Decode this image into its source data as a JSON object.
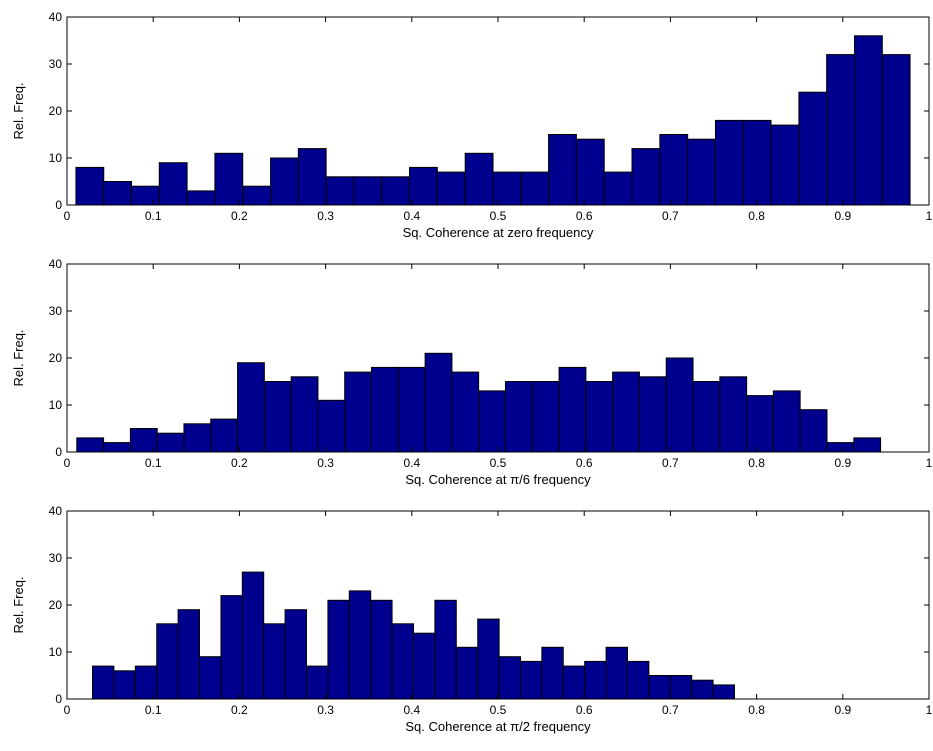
{
  "colors": {
    "bar": "#00008F",
    "edge": "#000000",
    "background": "#FFFFFF"
  },
  "chart_data": [
    {
      "type": "bar",
      "xlabel": "Sq. Coherence at zero frequency",
      "ylabel": "Rel. Freq.",
      "xlim": [
        0,
        1
      ],
      "ylim": [
        0,
        40
      ],
      "xticks": [
        0,
        0.1,
        0.2,
        0.3,
        0.4,
        0.5,
        0.6,
        0.7,
        0.8,
        0.9,
        1
      ],
      "xtick_labels": [
        "0",
        "0.1",
        "0.2",
        "0.3",
        "0.4",
        "0.5",
        "0.6",
        "0.7",
        "0.8",
        "0.9",
        "1"
      ],
      "yticks": [
        0,
        10,
        20,
        30,
        40
      ],
      "ytick_labels": [
        "0",
        "10",
        "20",
        "30",
        "40"
      ],
      "grid": false,
      "bin_width": 0.03226,
      "bin_centers": [
        0.0265,
        0.0587,
        0.091,
        0.1232,
        0.1555,
        0.1877,
        0.22,
        0.2523,
        0.2845,
        0.3168,
        0.349,
        0.3813,
        0.4135,
        0.4458,
        0.4781,
        0.5103,
        0.5426,
        0.5748,
        0.6071,
        0.6394,
        0.6716,
        0.7039,
        0.7361,
        0.7684,
        0.8006,
        0.8329,
        0.8652,
        0.8974,
        0.9297,
        0.9619
      ],
      "values": [
        8,
        5,
        4,
        9,
        3,
        11,
        4,
        10,
        12,
        6,
        6,
        6,
        8,
        7,
        11,
        7,
        7,
        15,
        14,
        7,
        12,
        15,
        14,
        18,
        18,
        17,
        24,
        32,
        36,
        32
      ]
    },
    {
      "type": "bar",
      "xlabel": "Sq. Coherence at π/6 frequency",
      "ylabel": "Rel. Freq.",
      "xlim": [
        0,
        1
      ],
      "ylim": [
        0,
        40
      ],
      "xticks": [
        0,
        0.1,
        0.2,
        0.3,
        0.4,
        0.5,
        0.6,
        0.7,
        0.8,
        0.9,
        1
      ],
      "xtick_labels": [
        "0",
        "0.1",
        "0.2",
        "0.3",
        "0.4",
        "0.5",
        "0.6",
        "0.7",
        "0.8",
        "0.9",
        "1"
      ],
      "yticks": [
        0,
        10,
        20,
        30,
        40
      ],
      "ytick_labels": [
        "0",
        "10",
        "20",
        "30",
        "40"
      ],
      "grid": false,
      "bin_width": 0.03108,
      "bin_centers": [
        0.0269,
        0.058,
        0.0891,
        0.1202,
        0.1512,
        0.1823,
        0.2134,
        0.2445,
        0.2756,
        0.3066,
        0.3377,
        0.3688,
        0.3999,
        0.431,
        0.462,
        0.4931,
        0.5242,
        0.5553,
        0.5864,
        0.6175,
        0.6485,
        0.6796,
        0.7107,
        0.7418,
        0.7729,
        0.8039,
        0.835,
        0.8661,
        0.8972,
        0.9283
      ],
      "values": [
        3,
        2,
        5,
        4,
        6,
        7,
        19,
        15,
        16,
        11,
        17,
        18,
        18,
        21,
        17,
        13,
        15,
        15,
        18,
        15,
        17,
        16,
        20,
        15,
        16,
        12,
        13,
        9,
        2,
        3
      ]
    },
    {
      "type": "bar",
      "xlabel": "Sq. Coherence at π/2 frequency",
      "ylabel": "Rel. Freq.",
      "xlim": [
        0,
        1
      ],
      "ylim": [
        0,
        40
      ],
      "xticks": [
        0,
        0.1,
        0.2,
        0.3,
        0.4,
        0.5,
        0.6,
        0.7,
        0.8,
        0.9,
        1
      ],
      "xtick_labels": [
        "0",
        "0.1",
        "0.2",
        "0.3",
        "0.4",
        "0.5",
        "0.6",
        "0.7",
        "0.8",
        "0.9",
        "1"
      ],
      "yticks": [
        0,
        10,
        20,
        30,
        40
      ],
      "ytick_labels": [
        "0",
        "10",
        "20",
        "30",
        "40"
      ],
      "grid": false,
      "bin_width": 0.02482,
      "bin_centers": [
        0.042,
        0.0668,
        0.0917,
        0.1165,
        0.1413,
        0.1661,
        0.191,
        0.2158,
        0.2406,
        0.2654,
        0.2903,
        0.3151,
        0.3399,
        0.3647,
        0.3896,
        0.4144,
        0.4392,
        0.464,
        0.4889,
        0.5137,
        0.5385,
        0.5633,
        0.5882,
        0.613,
        0.6378,
        0.6626,
        0.6875,
        0.7123,
        0.7371,
        0.7619
      ],
      "values": [
        7,
        6,
        7,
        16,
        19,
        9,
        22,
        27,
        16,
        19,
        7,
        21,
        23,
        21,
        16,
        14,
        21,
        11,
        17,
        9,
        8,
        11,
        7,
        8,
        11,
        8,
        5,
        5,
        4,
        3
      ]
    }
  ]
}
